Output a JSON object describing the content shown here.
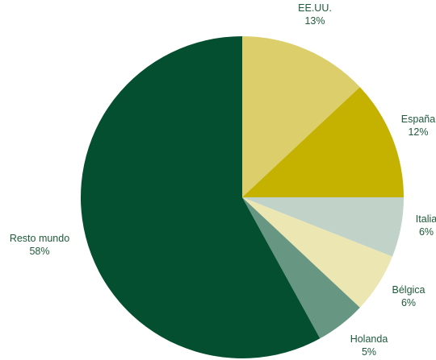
{
  "chart_data": {
    "type": "pie",
    "title": "",
    "start_angle_deg": 0,
    "direction": "clockwise",
    "slices": [
      {
        "label": "EE.UU.",
        "value": 13,
        "pct_label": "13%",
        "color": "#dccf6b"
      },
      {
        "label": "España",
        "value": 12,
        "pct_label": "12%",
        "color": "#c4b100"
      },
      {
        "label": "Italia",
        "value": 6,
        "pct_label": "6%",
        "color": "#c1d3c8"
      },
      {
        "label": "Bélgica",
        "value": 6,
        "pct_label": "6%",
        "color": "#ece6b3"
      },
      {
        "label": "Holanda",
        "value": 5,
        "pct_label": "5%",
        "color": "#679682"
      },
      {
        "label": "Resto mundo",
        "value": 58,
        "pct_label": "58%",
        "color": "#034f2f"
      }
    ],
    "label_color": "#1e5a3a"
  }
}
